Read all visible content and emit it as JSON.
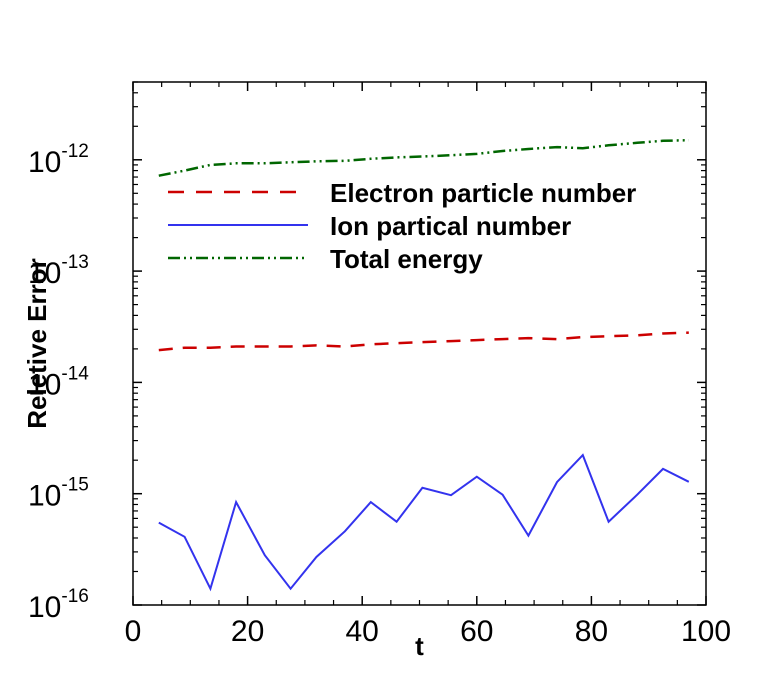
{
  "chart_data": {
    "type": "line",
    "xlabel": "t",
    "ylabel": "Reletive Error",
    "xlim": [
      0,
      100
    ],
    "ylim": [
      1e-16,
      5e-12
    ],
    "yscale": "log",
    "xticks": [
      0,
      20,
      40,
      60,
      80,
      100
    ],
    "xtick_labels": [
      "0",
      "20",
      "40",
      "60",
      "80",
      "100"
    ],
    "yticks": [
      1e-16,
      1e-15,
      1e-14,
      1e-13,
      1e-12
    ],
    "ytick_labels": [
      {
        "base": "10",
        "exp": "-16"
      },
      {
        "base": "10",
        "exp": "-15"
      },
      {
        "base": "10",
        "exp": "-14"
      },
      {
        "base": "10",
        "exp": "-13"
      },
      {
        "base": "10",
        "exp": "-12"
      }
    ],
    "legend_position": "upper-left inside",
    "series": [
      {
        "name": "Electron particle number",
        "color": "#cc0000",
        "style": "dashed",
        "x": [
          4.5,
          9,
          13.5,
          18,
          23,
          27.5,
          32,
          37,
          41.5,
          46,
          50.5,
          55.5,
          60,
          64.5,
          69,
          74,
          78.5,
          83,
          88,
          92.5,
          97
        ],
        "y": [
          1.95e-14,
          2.05e-14,
          2.05e-14,
          2.1e-14,
          2.1e-14,
          2.1e-14,
          2.15e-14,
          2.1e-14,
          2.2e-14,
          2.25e-14,
          2.3e-14,
          2.35e-14,
          2.4e-14,
          2.45e-14,
          2.5e-14,
          2.45e-14,
          2.55e-14,
          2.6e-14,
          2.65e-14,
          2.75e-14,
          2.8e-14
        ]
      },
      {
        "name": "Ion partical number",
        "color": "#3333ee",
        "style": "solid",
        "x": [
          4.5,
          9,
          13.5,
          18,
          23,
          27.5,
          32,
          37,
          41.5,
          46,
          50.5,
          55.5,
          60,
          64.5,
          69,
          74,
          78.5,
          83,
          88,
          92.5,
          97
        ],
        "y": [
          5.5e-16,
          4.1e-16,
          1.4e-16,
          8.4e-16,
          2.8e-16,
          1.4e-16,
          2.7e-16,
          4.6e-16,
          8.4e-16,
          5.6e-16,
          1.13e-15,
          9.7e-16,
          1.42e-15,
          9.8e-16,
          4.2e-16,
          1.27e-15,
          2.22e-15,
          5.6e-16,
          9.8e-16,
          1.67e-15,
          1.28e-15
        ]
      },
      {
        "name": "Total energy",
        "color": "#006600",
        "style": "dash-dot-dot",
        "x": [
          4.5,
          9,
          13.5,
          18,
          23,
          27.5,
          32,
          37,
          41.5,
          46,
          50.5,
          55.5,
          60,
          64.5,
          69,
          74,
          78.5,
          83,
          88,
          92.5,
          97
        ],
        "y": [
          7.2e-13,
          8e-13,
          9e-13,
          9.3e-13,
          9.3e-13,
          9.5e-13,
          9.7e-13,
          9.8e-13,
          1.02e-12,
          1.05e-12,
          1.07e-12,
          1.1e-12,
          1.13e-12,
          1.2e-12,
          1.25e-12,
          1.3e-12,
          1.27e-12,
          1.35e-12,
          1.42e-12,
          1.48e-12,
          1.5e-12
        ]
      }
    ]
  }
}
